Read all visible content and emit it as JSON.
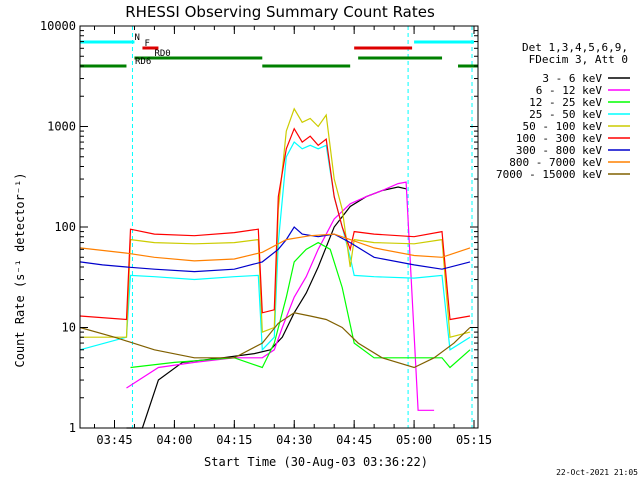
{
  "chart_data": {
    "type": "line",
    "title": "RHESSI Observing Summary Count Rates",
    "xlabel": "Start Time (30-Aug-03 03:36:22)",
    "ylabel": "Count Rate (s⁻¹ detector⁻¹)",
    "yscale": "log",
    "ylim": [
      1,
      10000
    ],
    "xlim": [
      "03:36:22",
      "05:16:00"
    ],
    "x_ticks": [
      "03:45",
      "04:00",
      "04:15",
      "04:30",
      "04:45",
      "05:00",
      "05:15"
    ],
    "y_ticks": [
      "1",
      "10",
      "100",
      "1000",
      "10000"
    ],
    "legend_header": [
      "Det 1,3,4,5,6,9,",
      "FDecim 3, Att 0"
    ],
    "legend_position": "right",
    "timestamp": "22-Oct-2021 21:05",
    "flags": [
      {
        "label": "N",
        "color": "#00ffff",
        "spans": [
          [
            "03:36:22",
            "03:50:00"
          ],
          [
            "05:00:00",
            "05:15:00"
          ]
        ]
      },
      {
        "label": "F",
        "color": "#dd0000",
        "spans": [
          [
            "03:52:00",
            "03:56:00"
          ],
          [
            "04:45:00",
            "04:59:30"
          ]
        ]
      },
      {
        "label": "RD0",
        "color": "#008000",
        "spans": [
          [
            "03:50:00",
            "04:22:00"
          ],
          [
            "04:46:00",
            "05:07:00"
          ]
        ]
      },
      {
        "label": "RD6",
        "color": "#008000",
        "spans": [
          [
            "03:36:22",
            "03:48:00"
          ],
          [
            "04:22:00",
            "04:44:00"
          ],
          [
            "05:11:00",
            "05:16:00"
          ]
        ]
      }
    ],
    "eclipse_lines": [
      "03:49:30",
      "04:58:30",
      "05:14:30"
    ],
    "series": [
      {
        "name": "3 - 6 keV",
        "color": "#000000",
        "x": [
          "03:48:00",
          "03:52:00",
          "03:56:00",
          "04:02:00",
          "04:12:00",
          "04:20:00",
          "04:24:00",
          "04:27:00",
          "04:30:00",
          "04:33:00",
          "04:36:00",
          "04:40:00",
          "04:44:00",
          "04:48:00",
          "04:52:00",
          "04:56:00",
          "04:58:00"
        ],
        "y": [
          1.0,
          1.0,
          3.0,
          4.5,
          5,
          5.5,
          6,
          8,
          14,
          22,
          40,
          100,
          160,
          200,
          230,
          250,
          240
        ]
      },
      {
        "name": "6 - 12 keV",
        "color": "#ff00ff",
        "x": [
          "03:48:00",
          "03:56:00",
          "04:05:00",
          "04:15:00",
          "04:22:00",
          "04:25:00",
          "04:27:00",
          "04:30:00",
          "04:33:00",
          "04:36:00",
          "04:40:00",
          "04:44:00",
          "04:48:00",
          "04:52:00",
          "04:56:00",
          "04:58:00",
          "05:01:00",
          "05:05:00"
        ],
        "y": [
          2.5,
          4,
          4.5,
          5,
          5,
          6,
          10,
          20,
          32,
          60,
          120,
          170,
          200,
          230,
          270,
          280,
          1.5,
          1.5
        ]
      },
      {
        "name": "12 - 25 keV",
        "color": "#00ff00",
        "x": [
          "03:49:00",
          "04:00:00",
          "04:15:00",
          "04:22:00",
          "04:25:00",
          "04:28:00",
          "04:30:00",
          "04:33:00",
          "04:36:00",
          "04:39:00",
          "04:42:00",
          "04:45:00",
          "04:50:00",
          "05:00:00",
          "05:07:00",
          "05:09:00",
          "05:14:00"
        ],
        "y": [
          4,
          4.5,
          5,
          4,
          7,
          20,
          45,
          60,
          70,
          60,
          25,
          7,
          5,
          5,
          5,
          4,
          6
        ]
      },
      {
        "name": "25 - 50 keV",
        "color": "#00ffff",
        "x": [
          "03:36:22",
          "03:48:00",
          "03:49:00",
          "03:55:00",
          "04:05:00",
          "04:15:00",
          "04:21:00",
          "04:22:00",
          "04:25:00",
          "04:26:00",
          "04:28:00",
          "04:30:00",
          "04:32:00",
          "04:34:00",
          "04:36:00",
          "04:38:00",
          "04:40:00",
          "04:42:00",
          "04:44:00",
          "04:45:00",
          "04:50:00",
          "05:00:00",
          "05:07:00",
          "05:09:00",
          "05:14:00"
        ],
        "y": [
          6,
          8,
          33,
          32,
          30,
          32,
          33,
          6,
          8,
          70,
          500,
          700,
          600,
          650,
          600,
          650,
          200,
          100,
          50,
          33,
          32,
          31,
          33,
          6,
          8
        ]
      },
      {
        "name": "50 - 100 keV",
        "color": "#cccc00",
        "x": [
          "03:36:22",
          "03:48:00",
          "03:49:00",
          "03:55:00",
          "04:05:00",
          "04:15:00",
          "04:21:00",
          "04:22:00",
          "04:25:00",
          "04:26:00",
          "04:28:00",
          "04:30:00",
          "04:32:00",
          "04:34:00",
          "04:36:00",
          "04:38:00",
          "04:40:00",
          "04:42:00",
          "04:44:00",
          "04:45:00",
          "04:50:00",
          "05:00:00",
          "05:07:00",
          "05:09:00",
          "05:14:00"
        ],
        "y": [
          8,
          8,
          75,
          70,
          68,
          70,
          75,
          9,
          10,
          150,
          900,
          1500,
          1100,
          1200,
          1000,
          1300,
          300,
          150,
          40,
          75,
          70,
          68,
          75,
          8,
          9
        ]
      },
      {
        "name": "100 - 300 keV",
        "color": "#ff0000",
        "x": [
          "03:36:22",
          "03:48:00",
          "03:49:00",
          "03:55:00",
          "04:05:00",
          "04:15:00",
          "04:21:00",
          "04:22:00",
          "04:25:00",
          "04:26:00",
          "04:28:00",
          "04:30:00",
          "04:32:00",
          "04:34:00",
          "04:36:00",
          "04:38:00",
          "04:40:00",
          "04:42:00",
          "04:44:00",
          "04:45:00",
          "04:50:00",
          "05:00:00",
          "05:07:00",
          "05:09:00",
          "05:14:00"
        ],
        "y": [
          13,
          12,
          95,
          85,
          82,
          88,
          95,
          14,
          15,
          200,
          600,
          950,
          700,
          800,
          650,
          750,
          200,
          100,
          60,
          90,
          85,
          80,
          90,
          12,
          13
        ]
      },
      {
        "name": "300 - 800 keV",
        "color": "#0000cc",
        "x": [
          "03:36:22",
          "03:42:00",
          "03:48:00",
          "03:55:00",
          "04:05:00",
          "04:15:00",
          "04:22:00",
          "04:26:00",
          "04:28:00",
          "04:30:00",
          "04:32:00",
          "04:36:00",
          "04:40:00",
          "04:44:00",
          "04:50:00",
          "05:00:00",
          "05:07:00",
          "05:14:00"
        ],
        "y": [
          45,
          42,
          40,
          38,
          36,
          38,
          45,
          60,
          75,
          100,
          85,
          80,
          85,
          70,
          50,
          42,
          38,
          45
        ]
      },
      {
        "name": "800 - 7000 keV",
        "color": "#ff8000",
        "x": [
          "03:36:22",
          "03:48:00",
          "03:55:00",
          "04:05:00",
          "04:15:00",
          "04:22:00",
          "04:28:00",
          "04:34:00",
          "04:40:00",
          "04:44:00",
          "04:50:00",
          "05:00:00",
          "05:07:00",
          "05:14:00"
        ],
        "y": [
          62,
          55,
          50,
          46,
          48,
          56,
          75,
          82,
          85,
          75,
          62,
          52,
          50,
          62
        ]
      },
      {
        "name": "7000 - 15000 keV",
        "color": "#806000",
        "x": [
          "03:36:22",
          "03:45:00",
          "03:55:00",
          "04:05:00",
          "04:15:00",
          "04:22:00",
          "04:26:00",
          "04:30:00",
          "04:34:00",
          "04:38:00",
          "04:42:00",
          "04:46:00",
          "04:52:00",
          "05:00:00",
          "05:05:00",
          "05:10:00",
          "05:14:00"
        ],
        "y": [
          10,
          8,
          6,
          5,
          5,
          7,
          11,
          14,
          13,
          12,
          10,
          7,
          5,
          4,
          5,
          7,
          10
        ]
      }
    ]
  }
}
